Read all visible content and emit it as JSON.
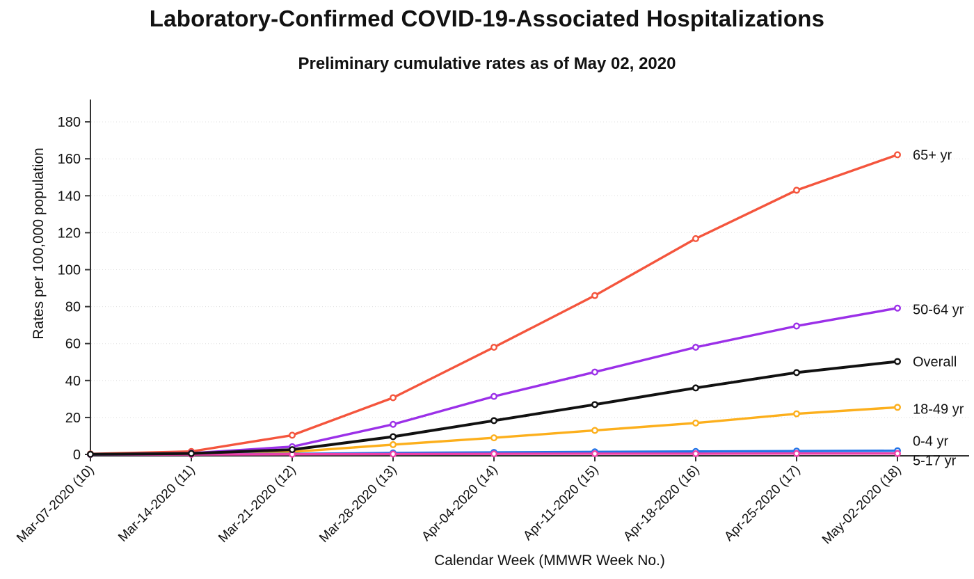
{
  "chart_data": {
    "type": "line",
    "title": "Laboratory-Confirmed COVID-19-Associated Hospitalizations",
    "subtitle": "Preliminary cumulative rates as of May 02, 2020",
    "xlabel": "Calendar Week (MMWR Week No.)",
    "ylabel": "Rates per 100,000 population",
    "categories": [
      "Mar-07-2020 (10)",
      "Mar-14-2020 (11)",
      "Mar-21-2020 (12)",
      "Mar-28-2020 (13)",
      "Apr-04-2020 (14)",
      "Apr-11-2020 (15)",
      "Apr-18-2020 (16)",
      "Apr-25-2020 (17)",
      "May-02-2020 (18)"
    ],
    "y_ticks": [
      0,
      20,
      40,
      60,
      80,
      100,
      120,
      140,
      160,
      180
    ],
    "ylim": [
      0,
      190
    ],
    "grid": "horizontal-dotted",
    "legend_position": "end-of-line-labels-right",
    "marker": "open-circle",
    "series": [
      {
        "name": "65+ yr",
        "color": "#F4553D",
        "z": 1,
        "label_dy": 0,
        "values": [
          0.3,
          1.6,
          10.4,
          30.7,
          58.0,
          86.0,
          116.8,
          143.0,
          162.2
        ]
      },
      {
        "name": "50-64 yr",
        "color": "#9B30E8",
        "z": 2,
        "label_dy": 2,
        "values": [
          0.1,
          0.7,
          4.2,
          16.3,
          31.4,
          44.6,
          58.0,
          69.5,
          79.2
        ]
      },
      {
        "name": "Overall",
        "color": "#111111",
        "z": 6,
        "label_dy": 0,
        "values": [
          0.1,
          0.5,
          2.6,
          9.6,
          18.3,
          27.0,
          36.0,
          44.3,
          50.3
        ]
      },
      {
        "name": "18-49 yr",
        "color": "#FCAF1C",
        "z": 3,
        "label_dy": 2,
        "values": [
          0.1,
          0.3,
          1.4,
          5.3,
          9.0,
          13.0,
          17.0,
          22.0,
          25.5
        ]
      },
      {
        "name": "0-4 yr",
        "color": "#2273E8",
        "z": 4,
        "label_dy": -14,
        "values": [
          0.0,
          0.1,
          0.3,
          0.8,
          1.1,
          1.4,
          1.6,
          1.8,
          2.0
        ]
      },
      {
        "name": "5-17 yr",
        "color": "#EE3FA8",
        "z": 5,
        "label_dy": 10,
        "values": [
          0.0,
          0.0,
          0.1,
          0.2,
          0.3,
          0.4,
          0.4,
          0.5,
          0.5
        ]
      }
    ],
    "axis_color": "#333333",
    "gridline_color": "#dedede"
  }
}
